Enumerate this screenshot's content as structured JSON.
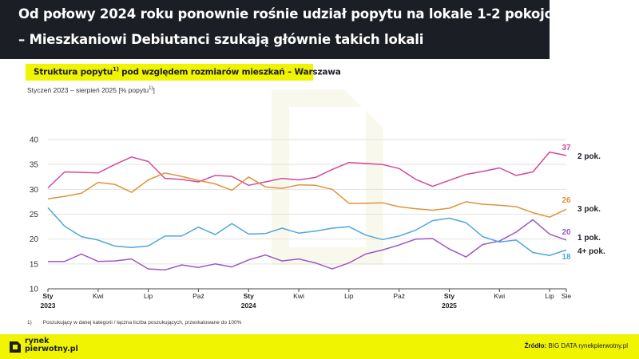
{
  "title": {
    "line1": "Od połowy 2024 roku ponownie rośnie udział popytu na lokale 1-2 pokojowe",
    "line2": "– Mieszkaniowi Debiutanci szukają głównie takich lokali"
  },
  "subtitle": {
    "before": "Struktura popytu",
    "sup": "1)",
    "after": " pod względem rozmiarów mieszkań – Warszawa"
  },
  "period": {
    "text": "Styczeń 2023 – sierpień 2025 [% popytu",
    "sup": "1)",
    "close": "]"
  },
  "footnote": {
    "number": "1)",
    "text": "Poszukujący w danej kategorii / łączna liczba poszukujących, przeskalowane do 100%"
  },
  "footer": {
    "logo_line1": "rynek",
    "logo_line2": "pierwotny.pl",
    "source_label": "Źródło:",
    "source_text": " BIG DATA rynekpierwotny.pl"
  },
  "colors": {
    "dark": "#1c1e26",
    "yellow": "#f0f400",
    "2pok": "#d1499b",
    "3pok": "#e0933a",
    "1pok": "#9b58c4",
    "4pok": "#4fa8d8"
  },
  "chart_data": {
    "type": "line",
    "ylim": [
      10,
      40
    ],
    "y_ticks": [
      "10",
      "15",
      "20",
      "25",
      "30",
      "35",
      "40"
    ],
    "grid": true,
    "x_tick_labels": [
      {
        "index": 0,
        "label": "Sty",
        "year": "2023"
      },
      {
        "index": 3,
        "label": "Kwi",
        "year": ""
      },
      {
        "index": 6,
        "label": "Lip",
        "year": ""
      },
      {
        "index": 9,
        "label": "Paź",
        "year": ""
      },
      {
        "index": 12,
        "label": "Sty",
        "year": "2024"
      },
      {
        "index": 15,
        "label": "Kwi",
        "year": ""
      },
      {
        "index": 18,
        "label": "Lip",
        "year": ""
      },
      {
        "index": 21,
        "label": "Paź",
        "year": ""
      },
      {
        "index": 24,
        "label": "Sty",
        "year": "2025"
      },
      {
        "index": 27,
        "label": "Kwi",
        "year": ""
      },
      {
        "index": 30,
        "label": "Lip",
        "year": ""
      },
      {
        "index": 31,
        "label": "Sie",
        "year": ""
      }
    ],
    "series": [
      {
        "name": "2 pok.",
        "color": "#d1499b",
        "end_label": "37",
        "values": [
          30.3,
          33.5,
          33.4,
          33.3,
          35.0,
          36.5,
          35.6,
          32.2,
          32.0,
          31.5,
          32.8,
          32.6,
          30.8,
          31.5,
          32.2,
          31.9,
          32.4,
          34.0,
          35.4,
          35.2,
          35.0,
          34.2,
          32.0,
          30.6,
          31.8,
          33.0,
          33.6,
          34.3,
          32.8,
          33.5,
          37.5,
          36.8
        ]
      },
      {
        "name": "3 pok.",
        "color": "#e0933a",
        "end_label": "26",
        "values": [
          28.1,
          28.6,
          29.2,
          31.4,
          31.0,
          29.4,
          31.9,
          33.3,
          32.6,
          31.8,
          31.1,
          29.8,
          32.5,
          30.5,
          30.2,
          30.9,
          30.8,
          30.0,
          27.2,
          27.2,
          27.3,
          26.5,
          26.1,
          25.8,
          26.2,
          27.5,
          27.0,
          26.8,
          26.5,
          25.3,
          24.4,
          26.0
        ]
      },
      {
        "name": "1 pok.",
        "color": "#9b58c4",
        "end_label": "20",
        "values": [
          15.5,
          15.5,
          17.0,
          15.5,
          15.6,
          16.0,
          14.0,
          13.8,
          14.8,
          14.3,
          15.0,
          14.4,
          15.8,
          16.8,
          15.6,
          16.0,
          15.2,
          14.0,
          15.2,
          17.0,
          17.8,
          18.8,
          20.0,
          20.1,
          18.0,
          16.4,
          18.9,
          19.6,
          21.4,
          23.9,
          21.0,
          19.8
        ]
      },
      {
        "name": "4+ pok.",
        "color": "#4fa8d8",
        "end_label": "18",
        "values": [
          26.3,
          22.6,
          20.5,
          19.8,
          18.6,
          18.3,
          18.6,
          20.6,
          20.6,
          22.4,
          20.9,
          23.1,
          21.0,
          21.1,
          22.2,
          21.2,
          21.6,
          22.2,
          22.5,
          20.8,
          19.9,
          20.6,
          21.8,
          23.7,
          24.2,
          23.3,
          20.5,
          19.4,
          19.8,
          17.3,
          16.7,
          17.8
        ]
      }
    ]
  }
}
